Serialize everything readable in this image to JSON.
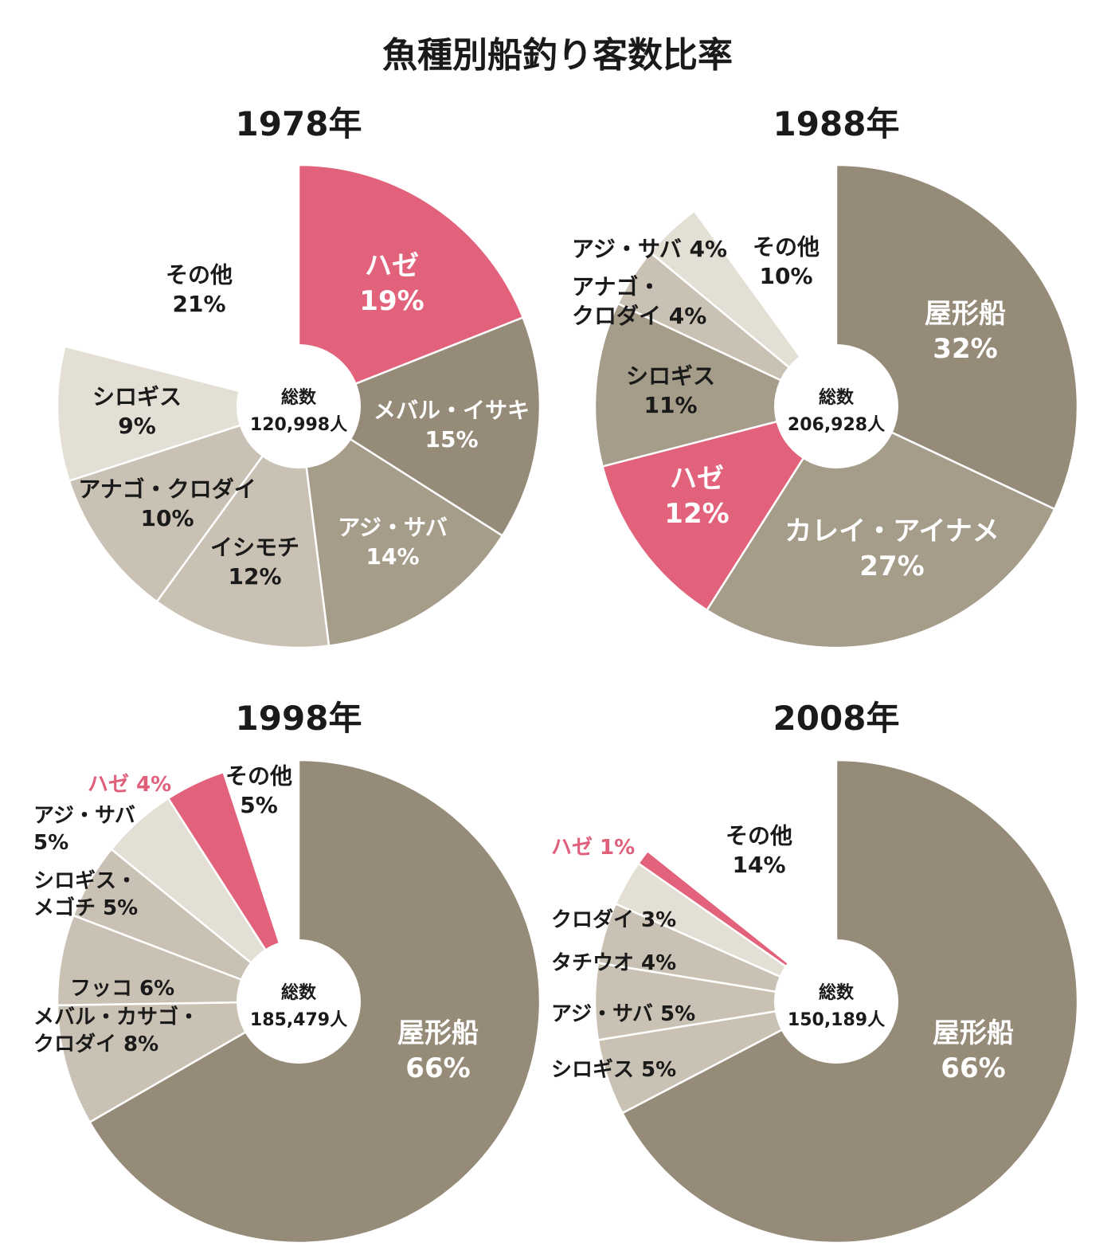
{
  "title": "魚種別船釣り客数比率",
  "colors": {
    "pink": "#e2617b",
    "dark": "#968b78",
    "mid": "#a59c89",
    "light": "#c9c1b3",
    "pale": "#e4dfd5",
    "label_dark": "#1a1a1a",
    "label_light": "#ffffff",
    "label_pink": "#e0607c"
  },
  "chart_data": [
    {
      "type": "pie",
      "year": "1978年",
      "total_label": "総数",
      "total_value": "120,998人",
      "slices": [
        {
          "name": "ハゼ",
          "value": 19,
          "label": [
            "ハゼ",
            "19%"
          ]
        },
        {
          "name": "メバル・イサキ",
          "value": 15,
          "label": [
            "メバル・イサキ",
            "15%"
          ]
        },
        {
          "name": "アジ・サバ",
          "value": 14,
          "label": [
            "アジ・サバ",
            "14%"
          ]
        },
        {
          "name": "イシモチ",
          "value": 12,
          "label": [
            "イシモチ",
            "12%"
          ]
        },
        {
          "name": "アナゴ・クロダイ",
          "value": 10,
          "label": [
            "アナゴ・クロダイ",
            "10%"
          ]
        },
        {
          "name": "シロギス",
          "value": 9,
          "label": [
            "シロギス",
            "9%"
          ]
        },
        {
          "name": "その他",
          "value": 21,
          "label": [
            "その他",
            "21%"
          ]
        }
      ]
    },
    {
      "type": "pie",
      "year": "1988年",
      "total_label": "総数",
      "total_value": "206,928人",
      "slices": [
        {
          "name": "屋形船",
          "value": 32,
          "label": [
            "屋形船",
            "32%"
          ]
        },
        {
          "name": "カレイ・アイナメ",
          "value": 27,
          "label": [
            "カレイ・アイナメ",
            "27%"
          ]
        },
        {
          "name": "ハゼ",
          "value": 12,
          "label": [
            "ハゼ",
            "12%"
          ]
        },
        {
          "name": "シロギス",
          "value": 11,
          "label": [
            "シロギス",
            "11%"
          ]
        },
        {
          "name": "アナゴ・クロダイ",
          "value": 4,
          "label": [
            "アナゴ・",
            "クロダイ 4%"
          ]
        },
        {
          "name": "アジ・サバ",
          "value": 4,
          "label": [
            "アジ・サバ 4%"
          ]
        },
        {
          "name": "その他",
          "value": 10,
          "label": [
            "その他",
            "10%"
          ]
        }
      ]
    },
    {
      "type": "pie",
      "year": "1998年",
      "total_label": "総数",
      "total_value": "185,479人",
      "slices": [
        {
          "name": "屋形船",
          "value": 66,
          "label": [
            "屋形船",
            "66%"
          ]
        },
        {
          "name": "メバル・カサゴ・クロダイ",
          "value": 8,
          "label": [
            "メバル・カサゴ・",
            "クロダイ 8%"
          ]
        },
        {
          "name": "フッコ",
          "value": 6,
          "label": [
            "フッコ 6%"
          ]
        },
        {
          "name": "シロギス・メゴチ",
          "value": 5,
          "label": [
            "シロギス・",
            "メゴチ 5%"
          ]
        },
        {
          "name": "アジ・サバ",
          "value": 5,
          "label": [
            "アジ・サバ",
            "5%"
          ]
        },
        {
          "name": "ハゼ",
          "value": 4,
          "label": [
            "ハゼ 4%"
          ]
        },
        {
          "name": "その他",
          "value": 5,
          "label": [
            "その他",
            "5%"
          ]
        }
      ]
    },
    {
      "type": "pie",
      "year": "2008年",
      "total_label": "総数",
      "total_value": "150,189人",
      "slices": [
        {
          "name": "屋形船",
          "value": 66,
          "label": [
            "屋形船",
            "66%"
          ]
        },
        {
          "name": "シロギス",
          "value": 5,
          "label": [
            "シロギス 5%"
          ]
        },
        {
          "name": "アジ・サバ",
          "value": 5,
          "label": [
            "アジ・サバ 5%"
          ]
        },
        {
          "name": "タチウオ",
          "value": 4,
          "label": [
            "タチウオ 4%"
          ]
        },
        {
          "name": "クロダイ",
          "value": 3,
          "label": [
            "クロダイ 3%"
          ]
        },
        {
          "name": "ハゼ",
          "value": 1,
          "label": [
            "ハゼ 1%"
          ]
        },
        {
          "name": "その他",
          "value": 14,
          "label": [
            "その他",
            "14%"
          ]
        }
      ]
    }
  ]
}
